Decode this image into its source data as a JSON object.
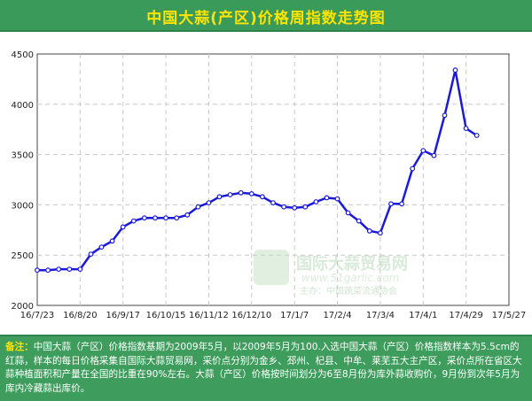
{
  "title": "中国大蒜(产区)价格周指数走势图",
  "colors": {
    "title_bg": "#3a9a5a",
    "title_text": "#ffe400",
    "line": "#1a1ad8",
    "note_bg": "#3e9c5c",
    "note_label": "#ffe400"
  },
  "watermark": {
    "cn": "国际大蒜贸易网",
    "url": "www.51garlic.com",
    "sub": "主办：中国蔬菜流通协会"
  },
  "note": {
    "label": "备注：",
    "text": "中国大蒜（产区）价格指数基期为2009年5月，以2009年5月为100.入选中国大蒜（产区）价格指数样本为5.5cm的红蒜，样本的每日价格采集自国际大蒜贸易网，采价点分别为金乡、邳州、杞县、中牟、莱芜五大主产区，采价点所在省区大蒜种植面积和产量在全国的比重在90%左右。大蒜（产区）价格按时间划分为6至8月份为库外蒜收购价，9月份到次年5月为库内冷藏蒜出库价。"
  },
  "chart_data": {
    "type": "line",
    "title": "中国大蒜(产区)价格周指数走势图",
    "xlabel": "",
    "ylabel": "",
    "ylim": [
      2000,
      4500
    ],
    "yticks": [
      2000,
      2500,
      3000,
      3500,
      4000,
      4500
    ],
    "x_tick_labels": [
      "16/7/23",
      "16/8/20",
      "16/9/17",
      "16/10/15",
      "16/11/12",
      "16/12/10",
      "17/1/7",
      "17/2/4",
      "17/3/4",
      "17/4/1",
      "17/4/29",
      "17/5/27"
    ],
    "grid": true,
    "legend": "none",
    "series": [
      {
        "x": [
          "16/7/23",
          "16/7/30",
          "16/8/6",
          "16/8/13",
          "16/8/20",
          "16/8/27",
          "16/9/3",
          "16/9/10",
          "16/9/17",
          "16/9/24",
          "16/10/1",
          "16/10/8",
          "16/10/15",
          "16/10/22",
          "16/10/29",
          "16/11/5",
          "16/11/12",
          "16/11/19",
          "16/11/26",
          "16/12/3",
          "16/12/10",
          "16/12/17",
          "16/12/24",
          "16/12/31",
          "17/1/7",
          "17/1/14",
          "17/1/21",
          "17/1/28",
          "17/2/4",
          "17/2/11",
          "17/2/18",
          "17/2/25",
          "17/3/4",
          "17/3/11",
          "17/3/18",
          "17/3/25",
          "17/4/1",
          "17/4/8",
          "17/4/15",
          "17/4/22",
          "17/4/29",
          "17/5/6",
          "17/5/13"
        ],
        "values": [
          2350,
          2350,
          2360,
          2360,
          2360,
          2510,
          2580,
          2640,
          2780,
          2840,
          2870,
          2870,
          2870,
          2870,
          2900,
          2980,
          3020,
          3080,
          3100,
          3120,
          3110,
          3080,
          3020,
          2980,
          2970,
          2980,
          3030,
          3070,
          3060,
          2920,
          2840,
          2740,
          2720,
          3010,
          3010,
          3360,
          3540,
          3490,
          3890,
          4340,
          3760,
          3690,
          null
        ]
      }
    ]
  }
}
